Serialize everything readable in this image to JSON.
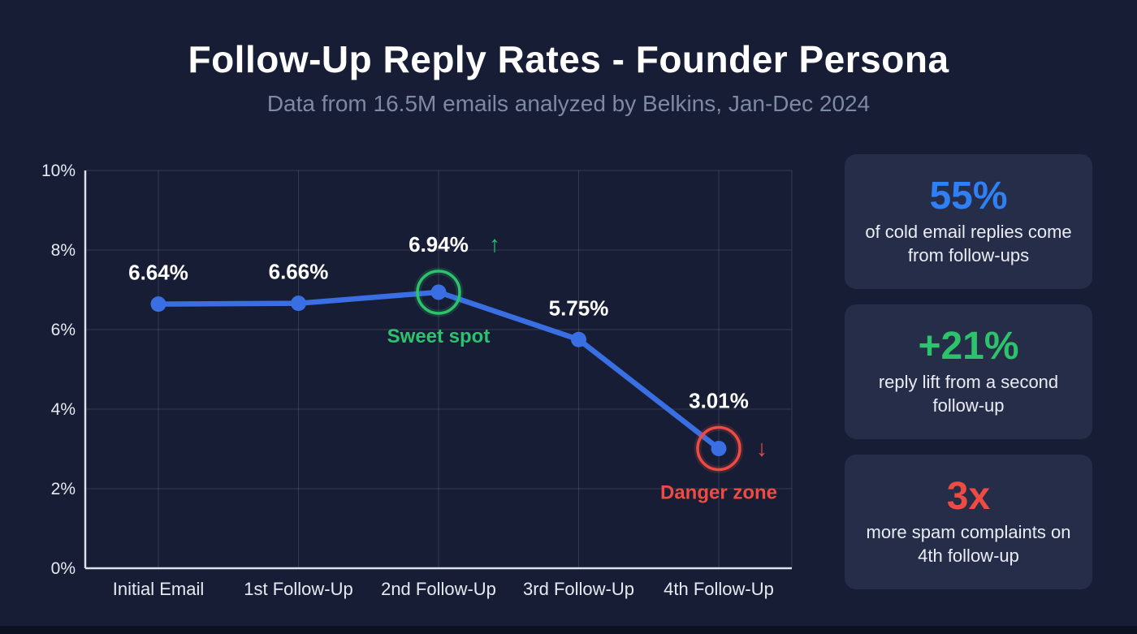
{
  "header": {
    "title": "Follow-Up Reply Rates - Founder Persona",
    "subtitle": "Data from 16.5M emails analyzed by Belkins, Jan-Dec 2024"
  },
  "chart_data": {
    "type": "line",
    "title": "Follow-Up Reply Rates - Founder Persona",
    "categories": [
      "Initial Email",
      "1st Follow-Up",
      "2nd Follow-Up",
      "3rd Follow-Up",
      "4th Follow-Up"
    ],
    "values": [
      6.64,
      6.66,
      6.94,
      5.75,
      3.01
    ],
    "point_labels": [
      "6.64%",
      "6.66%",
      "6.94%",
      "5.75%",
      "3.01%"
    ],
    "xlabel": "",
    "ylabel": "",
    "ylim": [
      0,
      10
    ],
    "ytick_values": [
      0,
      2,
      4,
      6,
      8,
      10
    ],
    "ytick_labels": [
      "0%",
      "2%",
      "4%",
      "6%",
      "8%",
      "10%"
    ],
    "grid": true,
    "legend": "none",
    "line_color": "#3a6fe4",
    "annotations": [
      {
        "index": 2,
        "label": "Sweet spot",
        "arrow": "↑",
        "arrow_placement": "after-value-label",
        "color": "#2dc26c"
      },
      {
        "index": 4,
        "label": "Danger zone",
        "arrow": "↓",
        "arrow_placement": "right-of-point",
        "color": "#ee4b42"
      }
    ]
  },
  "stat_cards": [
    {
      "value": "55%",
      "color": "#2f80f5",
      "description": "of cold email replies come from follow-ups"
    },
    {
      "value": "+21%",
      "color": "#2dc26c",
      "description": "reply lift from a second follow-up"
    },
    {
      "value": "3x",
      "color": "#ee4b42",
      "description": "more spam complaints on 4th follow-up"
    }
  ]
}
